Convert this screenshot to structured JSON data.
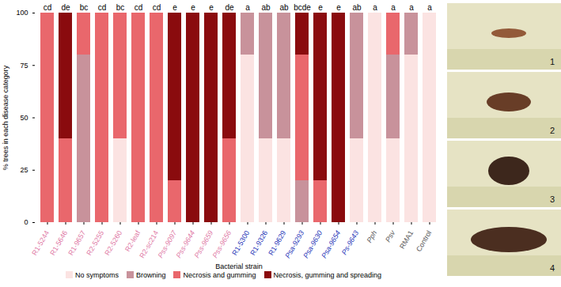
{
  "chart_data": {
    "type": "bar",
    "stacked": true,
    "x_label": "Bacterial strain",
    "y_label": "% trees in each disease category",
    "categories": [
      "R1-5244",
      "R1-5646",
      "R1-9657",
      "R2-5255",
      "R2-5260",
      "R2-leaf",
      "R2-sc214",
      "Pss-9097",
      "Pss-9644",
      "Pss-9659",
      "Pss-9656",
      "R1-5300",
      "R1-9326",
      "R1-9629",
      "Psa-9293",
      "Psa-9630",
      "Psa-9654",
      "Ps-9643",
      "Pph",
      "Psv",
      "RMA1",
      "Control"
    ],
    "annotations": [
      "cd",
      "de",
      "bc",
      "cd",
      "bc",
      "cd",
      "cd",
      "e",
      "e",
      "e",
      "de",
      "a",
      "ab",
      "ab",
      "bcde",
      "e",
      "e",
      "ab",
      "a",
      "a",
      "a",
      "a"
    ],
    "series": [
      {
        "name": "No symptoms",
        "color": "#fbe3e2",
        "values": [
          0,
          0,
          0,
          0,
          40,
          0,
          0,
          0,
          0,
          0,
          0,
          80,
          40,
          40,
          0,
          0,
          0,
          40,
          100,
          40,
          80,
          100
        ]
      },
      {
        "name": "Browning",
        "color": "#c8929b",
        "values": [
          0,
          0,
          80,
          0,
          0,
          0,
          0,
          0,
          0,
          0,
          0,
          20,
          60,
          60,
          20,
          0,
          0,
          60,
          0,
          40,
          20,
          0
        ]
      },
      {
        "name": "Necrosis and gumming",
        "color": "#e9676c",
        "values": [
          100,
          40,
          20,
          100,
          60,
          100,
          100,
          20,
          0,
          0,
          40,
          0,
          0,
          0,
          60,
          20,
          0,
          0,
          0,
          20,
          0,
          0
        ]
      },
      {
        "name": "Necrosis, gumming and spreading",
        "color": "#8a0b0e",
        "values": [
          0,
          60,
          0,
          0,
          0,
          0,
          0,
          80,
          100,
          100,
          60,
          0,
          0,
          0,
          20,
          80,
          100,
          0,
          0,
          0,
          0,
          0
        ]
      }
    ],
    "ylim": [
      0,
      100
    ],
    "yticks": [
      0,
      25,
      50,
      75,
      100
    ],
    "legend": "bottom",
    "panel_labels": [
      "1",
      "2",
      "3",
      "4"
    ]
  }
}
